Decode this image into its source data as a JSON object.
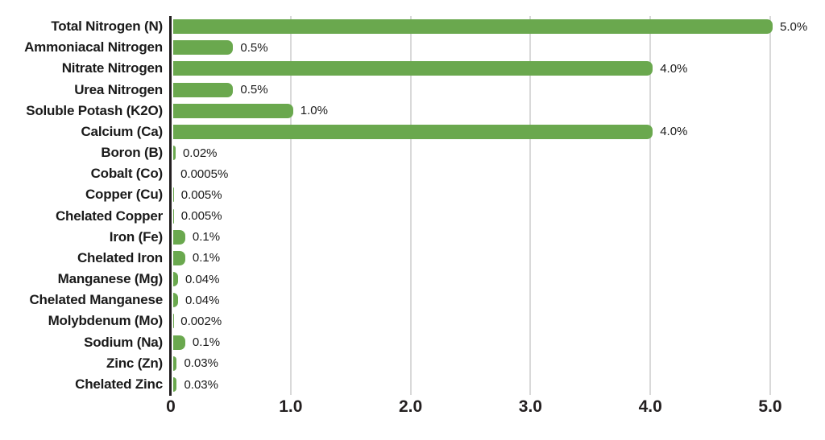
{
  "chart_data": {
    "type": "bar",
    "orientation": "horizontal",
    "title": "",
    "xlabel": "",
    "ylabel": "",
    "categories": [
      "Total Nitrogen (N)",
      "Ammoniacal Nitrogen",
      "Nitrate Nitrogen",
      "Urea Nitrogen",
      "Soluble Potash (K2O)",
      "Calcium (Ca)",
      "Boron (B)",
      "Cobalt (Co)",
      "Copper (Cu)",
      "Chelated Copper",
      "Iron (Fe)",
      "Chelated Iron",
      "Manganese (Mg)",
      "Chelated Manganese",
      "Molybdenum (Mo)",
      "Sodium (Na)",
      "Zinc (Zn)",
      "Chelated Zinc"
    ],
    "values": [
      5.0,
      0.5,
      4.0,
      0.5,
      1.0,
      4.0,
      0.02,
      0.0005,
      0.005,
      0.005,
      0.1,
      0.1,
      0.04,
      0.04,
      0.002,
      0.1,
      0.03,
      0.03
    ],
    "value_labels": [
      "5.0%",
      "0.5%",
      "4.0%",
      "0.5%",
      "1.0%",
      "4.0%",
      "0.02%",
      "0.0005%",
      "0.005%",
      "0.005%",
      "0.1%",
      "0.1%",
      "0.04%",
      "0.04%",
      "0.002%",
      "0.1%",
      "0.03%",
      "0.03%"
    ],
    "xlim": [
      0,
      5.45
    ],
    "xticks": [
      0,
      1.0,
      2.0,
      3.0,
      4.0,
      5.0
    ],
    "xtick_labels": [
      "0",
      "1.0",
      "2.0",
      "3.0",
      "4.0",
      "5.0"
    ],
    "grid": "vertical-only",
    "legend": "none",
    "colors": {
      "bar": "#6aa84e",
      "gridline": "#d9d9d9",
      "axis_line": "#231f20",
      "text": "#1a1a1a",
      "background": "#ffffff"
    }
  }
}
